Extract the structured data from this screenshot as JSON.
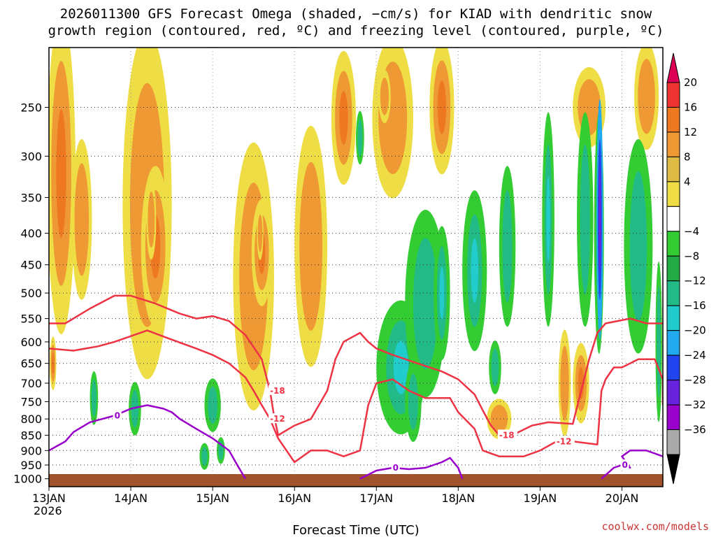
{
  "title": {
    "line1": "2026011300 GFS Forecast Omega (shaded, −cm/s) for KIAD with dendritic snow",
    "line2": "growth region (contoured, red, ºC) and freezing level (contoured, purple, ºC)"
  },
  "credit": "coolwx.com/models",
  "chart_data": {
    "type": "heatmap",
    "xlabel": "Forecast Time (UTC)",
    "ylabel": "",
    "x_ticks": [
      "13JAN",
      "14JAN",
      "15JAN",
      "16JAN",
      "17JAN",
      "18JAN",
      "19JAN",
      "20JAN"
    ],
    "x_year_label": "2026",
    "y_ticks": [
      250,
      300,
      350,
      400,
      450,
      500,
      550,
      600,
      650,
      700,
      750,
      800,
      850,
      900,
      950,
      1000
    ],
    "y_scale": "log-pressure",
    "y_range_hpa": [
      1030,
      200
    ],
    "x_range_days": [
      0,
      7.5
    ],
    "grid": true,
    "colorbar": {
      "levels": [
        "20",
        "16",
        "12",
        "8",
        "4",
        "−4",
        "−8",
        "−12",
        "−16",
        "−20",
        "−24",
        "−28",
        "−32",
        "−36"
      ],
      "colors": [
        "#dd0055",
        "#ee3333",
        "#ee7722",
        "#ee9933",
        "#ddbb44",
        "#eedd44",
        "#ffffff",
        "#33cc33",
        "#22aa44",
        "#22bb88",
        "#22cccc",
        "#22aaee",
        "#2244ee",
        "#6622dd",
        "#9900cc",
        "#aaaaaa",
        "#000000"
      ]
    },
    "series": [
      {
        "name": "-18",
        "type": "contour",
        "color": "#ee3344",
        "points": [
          [
            0,
            560
          ],
          [
            0.2,
            560
          ],
          [
            0.5,
            530
          ],
          [
            0.8,
            505
          ],
          [
            1.0,
            505
          ],
          [
            1.3,
            520
          ],
          [
            1.6,
            540
          ],
          [
            1.8,
            550
          ],
          [
            2.0,
            545
          ],
          [
            2.2,
            555
          ],
          [
            2.4,
            585
          ],
          [
            2.6,
            640
          ],
          [
            2.7,
            720
          ],
          [
            2.75,
            790
          ],
          [
            2.8,
            850
          ],
          [
            3.0,
            820
          ],
          [
            3.2,
            800
          ],
          [
            3.4,
            720
          ],
          [
            3.5,
            640
          ],
          [
            3.6,
            600
          ],
          [
            3.8,
            580
          ],
          [
            3.9,
            600
          ],
          [
            4.0,
            615
          ],
          [
            4.2,
            630
          ],
          [
            4.5,
            650
          ],
          [
            4.8,
            670
          ],
          [
            5.0,
            690
          ],
          [
            5.2,
            730
          ],
          [
            5.3,
            775
          ],
          [
            5.4,
            820
          ],
          [
            5.5,
            850
          ],
          [
            5.7,
            845
          ],
          [
            5.9,
            820
          ],
          [
            6.1,
            810
          ],
          [
            6.4,
            815
          ],
          [
            6.6,
            640
          ],
          [
            6.7,
            580
          ],
          [
            6.8,
            560
          ],
          [
            7.1,
            550
          ],
          [
            7.3,
            560
          ],
          [
            7.5,
            560
          ]
        ]
      },
      {
        "name": "-12",
        "type": "contour",
        "color": "#ee3344",
        "points": [
          [
            0,
            615
          ],
          [
            0.3,
            620
          ],
          [
            0.6,
            610
          ],
          [
            0.8,
            600
          ],
          [
            1.2,
            575
          ],
          [
            1.5,
            595
          ],
          [
            1.8,
            615
          ],
          [
            2.0,
            630
          ],
          [
            2.2,
            650
          ],
          [
            2.4,
            685
          ],
          [
            2.5,
            720
          ],
          [
            2.6,
            760
          ],
          [
            2.7,
            800
          ],
          [
            2.8,
            860
          ],
          [
            3.0,
            940
          ],
          [
            3.2,
            900
          ],
          [
            3.4,
            900
          ],
          [
            3.6,
            920
          ],
          [
            3.8,
            900
          ],
          [
            3.9,
            760
          ],
          [
            4.0,
            700
          ],
          [
            4.2,
            690
          ],
          [
            4.4,
            720
          ],
          [
            4.6,
            740
          ],
          [
            4.9,
            740
          ],
          [
            5.0,
            780
          ],
          [
            5.2,
            830
          ],
          [
            5.3,
            900
          ],
          [
            5.5,
            920
          ],
          [
            5.8,
            920
          ],
          [
            6.0,
            900
          ],
          [
            6.2,
            870
          ],
          [
            6.4,
            870
          ],
          [
            6.7,
            880
          ],
          [
            6.75,
            720
          ],
          [
            6.8,
            690
          ],
          [
            6.9,
            660
          ],
          [
            7.0,
            660
          ],
          [
            7.2,
            640
          ],
          [
            7.4,
            640
          ],
          [
            7.5,
            690
          ],
          [
            7.5,
            760
          ]
        ]
      },
      {
        "name": "0",
        "type": "contour",
        "color": "#9900cc",
        "points": [
          [
            0,
            900
          ],
          [
            0.2,
            870
          ],
          [
            0.3,
            840
          ],
          [
            0.5,
            810
          ],
          [
            0.8,
            790
          ],
          [
            1.0,
            770
          ],
          [
            1.2,
            760
          ],
          [
            1.4,
            770
          ],
          [
            1.5,
            780
          ],
          [
            1.6,
            800
          ],
          [
            1.8,
            830
          ],
          [
            2.0,
            860
          ],
          [
            2.2,
            900
          ],
          [
            2.3,
            950
          ],
          [
            2.4,
            1000
          ]
        ]
      },
      {
        "name": "0",
        "type": "contour",
        "color": "#9900cc",
        "points": [
          [
            3.8,
            1000
          ],
          [
            4.0,
            970
          ],
          [
            4.2,
            960
          ],
          [
            4.4,
            965
          ],
          [
            4.6,
            960
          ],
          [
            4.8,
            940
          ],
          [
            4.9,
            925
          ],
          [
            5.0,
            960
          ],
          [
            5.05,
            1000
          ]
        ]
      },
      {
        "name": "0",
        "type": "contour",
        "color": "#9900cc",
        "points": [
          [
            6.75,
            1000
          ],
          [
            6.9,
            960
          ],
          [
            7.0,
            950
          ],
          [
            7.1,
            960
          ],
          [
            7.0,
            920
          ],
          [
            7.1,
            900
          ],
          [
            7.3,
            900
          ],
          [
            7.5,
            920
          ]
        ]
      }
    ]
  }
}
